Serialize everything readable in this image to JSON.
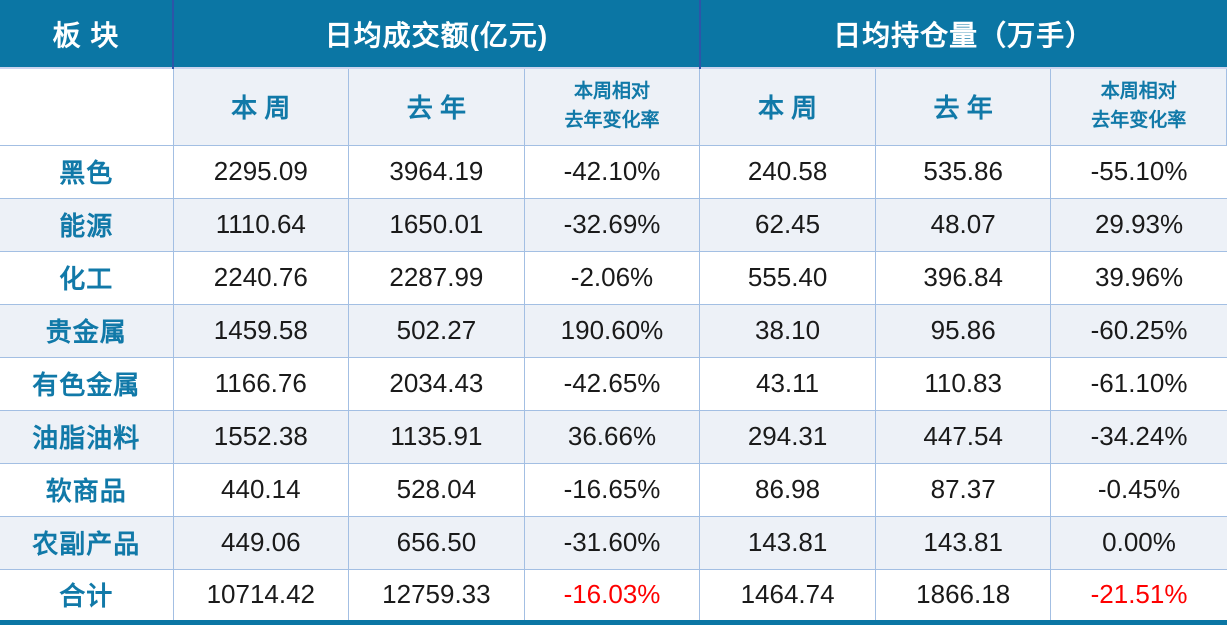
{
  "table": {
    "corner_label": "板 块",
    "group_headers": {
      "turnover": "日均成交额(亿元)",
      "open_interest": "日均持仓量（万手）"
    },
    "sub_headers": {
      "week": "本 周",
      "last_year": "去 年",
      "change_line1": "本周相对",
      "change_line2": "去年变化率"
    },
    "rows": [
      {
        "label": "黑色",
        "turnover_week": "2295.09",
        "turnover_last": "3964.19",
        "turnover_change": "-42.10%",
        "oi_week": "240.58",
        "oi_last": "535.86",
        "oi_change": "-55.10%"
      },
      {
        "label": "能源",
        "turnover_week": "1110.64",
        "turnover_last": "1650.01",
        "turnover_change": "-32.69%",
        "oi_week": "62.45",
        "oi_last": "48.07",
        "oi_change": "29.93%"
      },
      {
        "label": "化工",
        "turnover_week": "2240.76",
        "turnover_last": "2287.99",
        "turnover_change": "-2.06%",
        "oi_week": "555.40",
        "oi_last": "396.84",
        "oi_change": "39.96%"
      },
      {
        "label": "贵金属",
        "turnover_week": "1459.58",
        "turnover_last": "502.27",
        "turnover_change": "190.60%",
        "oi_week": "38.10",
        "oi_last": "95.86",
        "oi_change": "-60.25%"
      },
      {
        "label": "有色金属",
        "turnover_week": "1166.76",
        "turnover_last": "2034.43",
        "turnover_change": "-42.65%",
        "oi_week": "43.11",
        "oi_last": "110.83",
        "oi_change": "-61.10%"
      },
      {
        "label": "油脂油料",
        "turnover_week": "1552.38",
        "turnover_last": "1135.91",
        "turnover_change": "36.66%",
        "oi_week": "294.31",
        "oi_last": "447.54",
        "oi_change": "-34.24%"
      },
      {
        "label": "软商品",
        "turnover_week": "440.14",
        "turnover_last": "528.04",
        "turnover_change": "-16.65%",
        "oi_week": "86.98",
        "oi_last": "87.37",
        "oi_change": "-0.45%"
      },
      {
        "label": "农副产品",
        "turnover_week": "449.06",
        "turnover_last": "656.50",
        "turnover_change": "-31.60%",
        "oi_week": "143.81",
        "oi_last": "143.81",
        "oi_change": "0.00%"
      },
      {
        "label": "合计",
        "turnover_week": "10714.42",
        "turnover_last": "12759.33",
        "turnover_change": "-16.03%",
        "oi_week": "1464.74",
        "oi_last": "1866.18",
        "oi_change": "-21.51%"
      }
    ],
    "colors": {
      "header_bg": "#0b76a4",
      "header_text": "#ffffff",
      "accent_text": "#1179a8",
      "stripe_bg": "#edf1f7",
      "grid_border": "#a3bfe3",
      "negative_total": "#fe0000",
      "data_text": "#1a1a1a"
    }
  }
}
